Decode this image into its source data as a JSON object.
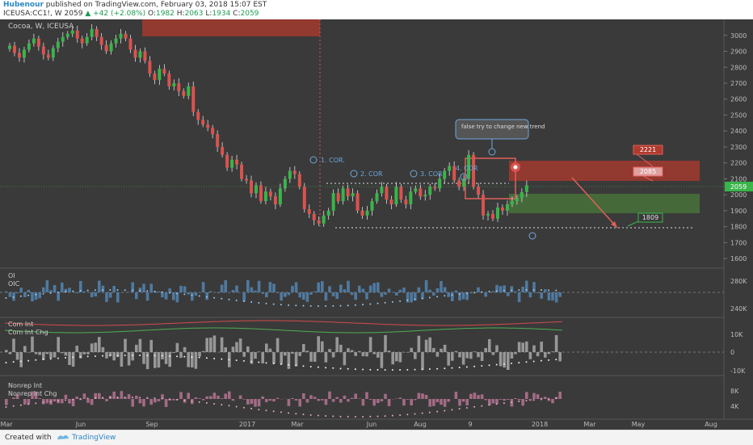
{
  "header": {
    "author": "Hubenour",
    "published": "published on TradingView.com, February 03, 2018 15:07 EST",
    "symbol": "ICEUSA:CC1!, W",
    "last": "2059",
    "change": "+42 (+2.08%)",
    "o_label": "O:",
    "o": "1982",
    "h_label": "H:",
    "h": "2063",
    "l_label": "L:",
    "l": "1934",
    "c_label": "C:",
    "c": "2059"
  },
  "footer": {
    "created": "Created with",
    "brand": "TradingView"
  },
  "colors": {
    "background": "#3a3a3a",
    "up": "#39b54a",
    "down": "#d9534f",
    "resistance_zone": "#b03a2e",
    "support_zone": "#4b7d3a",
    "oi_bars": "#4f7aa0",
    "com_bars": "#a8a8a8",
    "nonrep_bars": "#a46b86",
    "com_line": "#d34b4b",
    "com_chg_line": "#4caf50"
  },
  "chart_data": [
    {
      "type": "candlestick",
      "title": "Cocoa, W, ICEUSA",
      "y_ticks": [
        3000,
        2900,
        2800,
        2700,
        2600,
        2500,
        2400,
        2300,
        2200,
        2100,
        2000,
        1900,
        1800,
        1700,
        1600
      ],
      "ylim": [
        1550,
        3080
      ],
      "x_ticks": [
        "Mar",
        "Jun",
        "Sep",
        "2017",
        "Mar",
        "Jun",
        "Aug",
        "9",
        "2018",
        "Mar",
        "May",
        "Aug"
      ],
      "last_price_label": "2059",
      "close": [
        2935,
        2890,
        2860,
        2910,
        2950,
        2980,
        2930,
        2880,
        2860,
        2920,
        2960,
        2990,
        3010,
        3030,
        2980,
        2950,
        2990,
        3040,
        2990,
        2940,
        2900,
        2950,
        2980,
        3010,
        2980,
        2910,
        2860,
        2900,
        2840,
        2760,
        2720,
        2790,
        2760,
        2680,
        2700,
        2650,
        2620,
        2680,
        2520,
        2470,
        2440,
        2420,
        2380,
        2300,
        2250,
        2170,
        2220,
        2190,
        2100,
        2090,
        2010,
        2060,
        1960,
        2020,
        1990,
        1940,
        2040,
        2100,
        2150,
        2130,
        2050,
        1910,
        1880,
        1840,
        1820,
        1870,
        1900,
        2010,
        1960,
        2040,
        1990,
        2010,
        1900,
        1870,
        1900,
        1960,
        2010,
        2050,
        1970,
        1940,
        2050,
        1970,
        1940,
        2020,
        2040,
        1990,
        2000,
        2050,
        2040,
        2100,
        2150,
        2180,
        2090,
        2050,
        2100,
        2250,
        2050,
        2000,
        1870,
        1880,
        1850,
        1920,
        1900,
        1940,
        1960,
        1980,
        2017,
        2059
      ],
      "annotations": [
        "1. COR.",
        "2. COR",
        "3. COR",
        "4. COR",
        "false try to change new trend"
      ],
      "price_labels": [
        "2221",
        "2085",
        "1809"
      ]
    },
    {
      "type": "bar",
      "legend": [
        "OI",
        "OIC"
      ],
      "y_ticks": [
        "280K",
        "240K"
      ]
    },
    {
      "type": "bar",
      "legend": [
        "Com Int",
        "Com Int Chg"
      ],
      "y_ticks": [
        "10K",
        "0",
        "-10K"
      ]
    },
    {
      "type": "bar",
      "legend": [
        "Nonrep Int",
        "Nonrep Int Chg"
      ],
      "y_ticks": [
        "8K",
        "4K"
      ]
    }
  ]
}
